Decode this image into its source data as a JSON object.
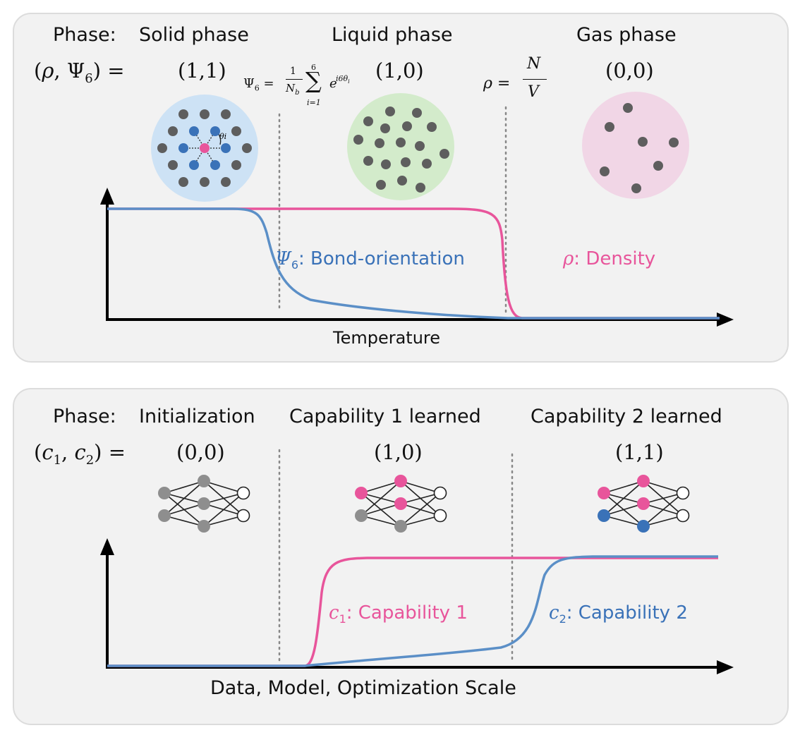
{
  "colors": {
    "pink": "#e8559b",
    "blue": "#3a72b8",
    "gray_dot": "#5e5e5e",
    "node_gray": "#8e8e8e",
    "solid_bg": "#cde2f5",
    "liquid_bg": "#d3ebcb",
    "gas_bg": "#f1d6e6",
    "panel_bg": "#f2f2f2"
  },
  "top": {
    "phase_label": "Phase:",
    "tuple_label": "(ρ, Ψ6) =",
    "phases": [
      {
        "name": "Solid phase",
        "value": "(1,1)",
        "icon": "lattice-circle"
      },
      {
        "name": "Liquid phase",
        "value": "(1,0)",
        "icon": "liquid-circle"
      },
      {
        "name": "Gas phase",
        "value": "(0,0)",
        "icon": "gas-circle"
      }
    ],
    "psi_formula": "Ψ6 = (1/Nb) Σ_{i=1}^{6} e^{i6θi}",
    "rho_formula": "ρ = N/V",
    "theta_label": "θi",
    "x_axis_label": "Temperature",
    "curves": [
      {
        "symbol": "Ψ6",
        "label": ": Bond-orientation",
        "color": "blue"
      },
      {
        "symbol": "ρ",
        "label": ": Density",
        "color": "pink"
      }
    ]
  },
  "bottom": {
    "phase_label": "Phase:",
    "tuple_label": "(c1, c2) =",
    "phases": [
      {
        "name": "Initialization",
        "value": "(0,0)",
        "icon": "network-gray"
      },
      {
        "name": "Capability 1 learned",
        "value": "(1,0)",
        "icon": "network-pink"
      },
      {
        "name": "Capability 2 learned",
        "value": "(1,1)",
        "icon": "network-pink-blue"
      }
    ],
    "x_axis_label": "Data, Model, Optimization Scale",
    "curves": [
      {
        "symbol": "c1",
        "label": ": Capability 1",
        "color": "pink"
      },
      {
        "symbol": "c2",
        "label": ": Capability 2",
        "color": "blue"
      }
    ]
  }
}
